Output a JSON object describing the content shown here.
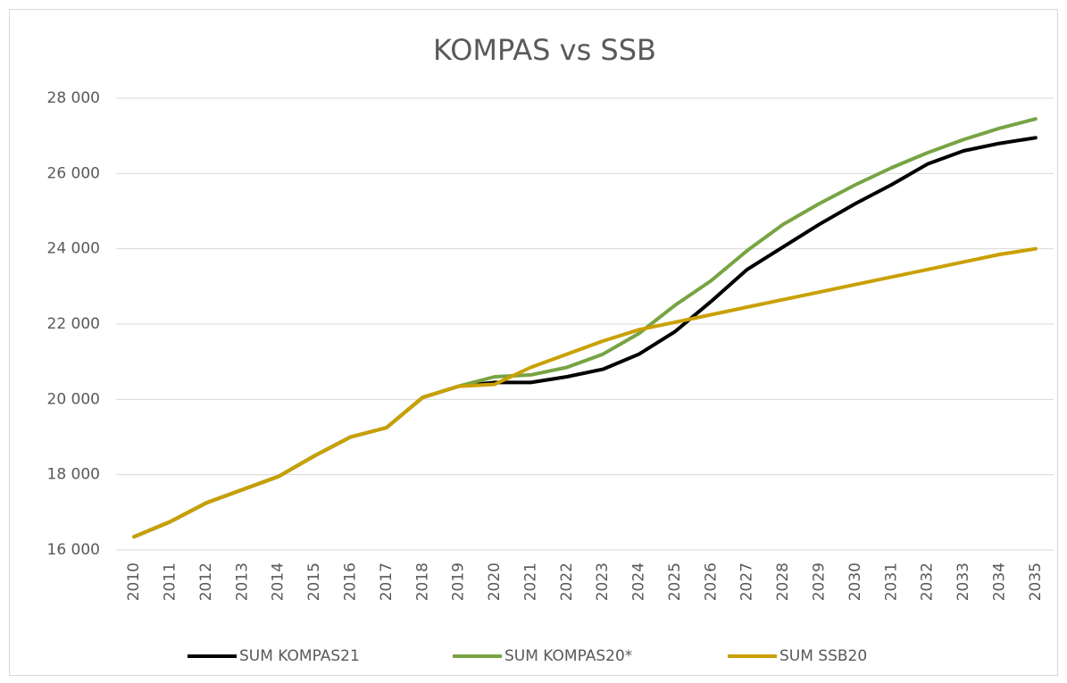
{
  "chart_data": {
    "type": "line",
    "title": "KOMPAS vs SSB",
    "categories": [
      "2010",
      "2011",
      "2012",
      "2013",
      "2014",
      "2015",
      "2016",
      "2017",
      "2018",
      "2019",
      "2020",
      "2021",
      "2022",
      "2023",
      "2024",
      "2025",
      "2026",
      "2027",
      "2028",
      "2029",
      "2030",
      "2031",
      "2032",
      "2033",
      "2034",
      "2035"
    ],
    "series": [
      {
        "name": "SUM KOMPAS21",
        "color": "#000000",
        "values": [
          16350,
          16750,
          17250,
          17600,
          17950,
          18500,
          19000,
          19250,
          20050,
          20350,
          20450,
          20450,
          20600,
          20800,
          21200,
          21800,
          22600,
          23450,
          24050,
          24650,
          25200,
          25700,
          26250,
          26600,
          26800,
          26950
        ]
      },
      {
        "name": "SUM KOMPAS20*",
        "color": "#77a443",
        "values": [
          16350,
          16750,
          17250,
          17600,
          17950,
          18500,
          19000,
          19250,
          20050,
          20350,
          20600,
          20650,
          20850,
          21200,
          21750,
          22500,
          23150,
          23950,
          24650,
          25200,
          25700,
          26150,
          26550,
          26900,
          27200,
          27450
        ]
      },
      {
        "name": "SUM SSB20",
        "color": "#c9a000",
        "values": [
          16350,
          16750,
          17250,
          17600,
          17950,
          18500,
          19000,
          19250,
          20050,
          20350,
          20400,
          20850,
          21200,
          21550,
          21850,
          22050,
          22250,
          22450,
          22650,
          22850,
          23050,
          23250,
          23450,
          23650,
          23850,
          24000
        ]
      }
    ],
    "ylim": [
      16000,
      28000
    ],
    "yticks": [
      {
        "value": 16000,
        "label": "16 000"
      },
      {
        "value": 18000,
        "label": "18 000"
      },
      {
        "value": 20000,
        "label": "20 000"
      },
      {
        "value": 22000,
        "label": "22 000"
      },
      {
        "value": 24000,
        "label": "24 000"
      },
      {
        "value": 26000,
        "label": "26 000"
      },
      {
        "value": 28000,
        "label": "28 000"
      }
    ],
    "grid": true,
    "legend": "bottom"
  }
}
